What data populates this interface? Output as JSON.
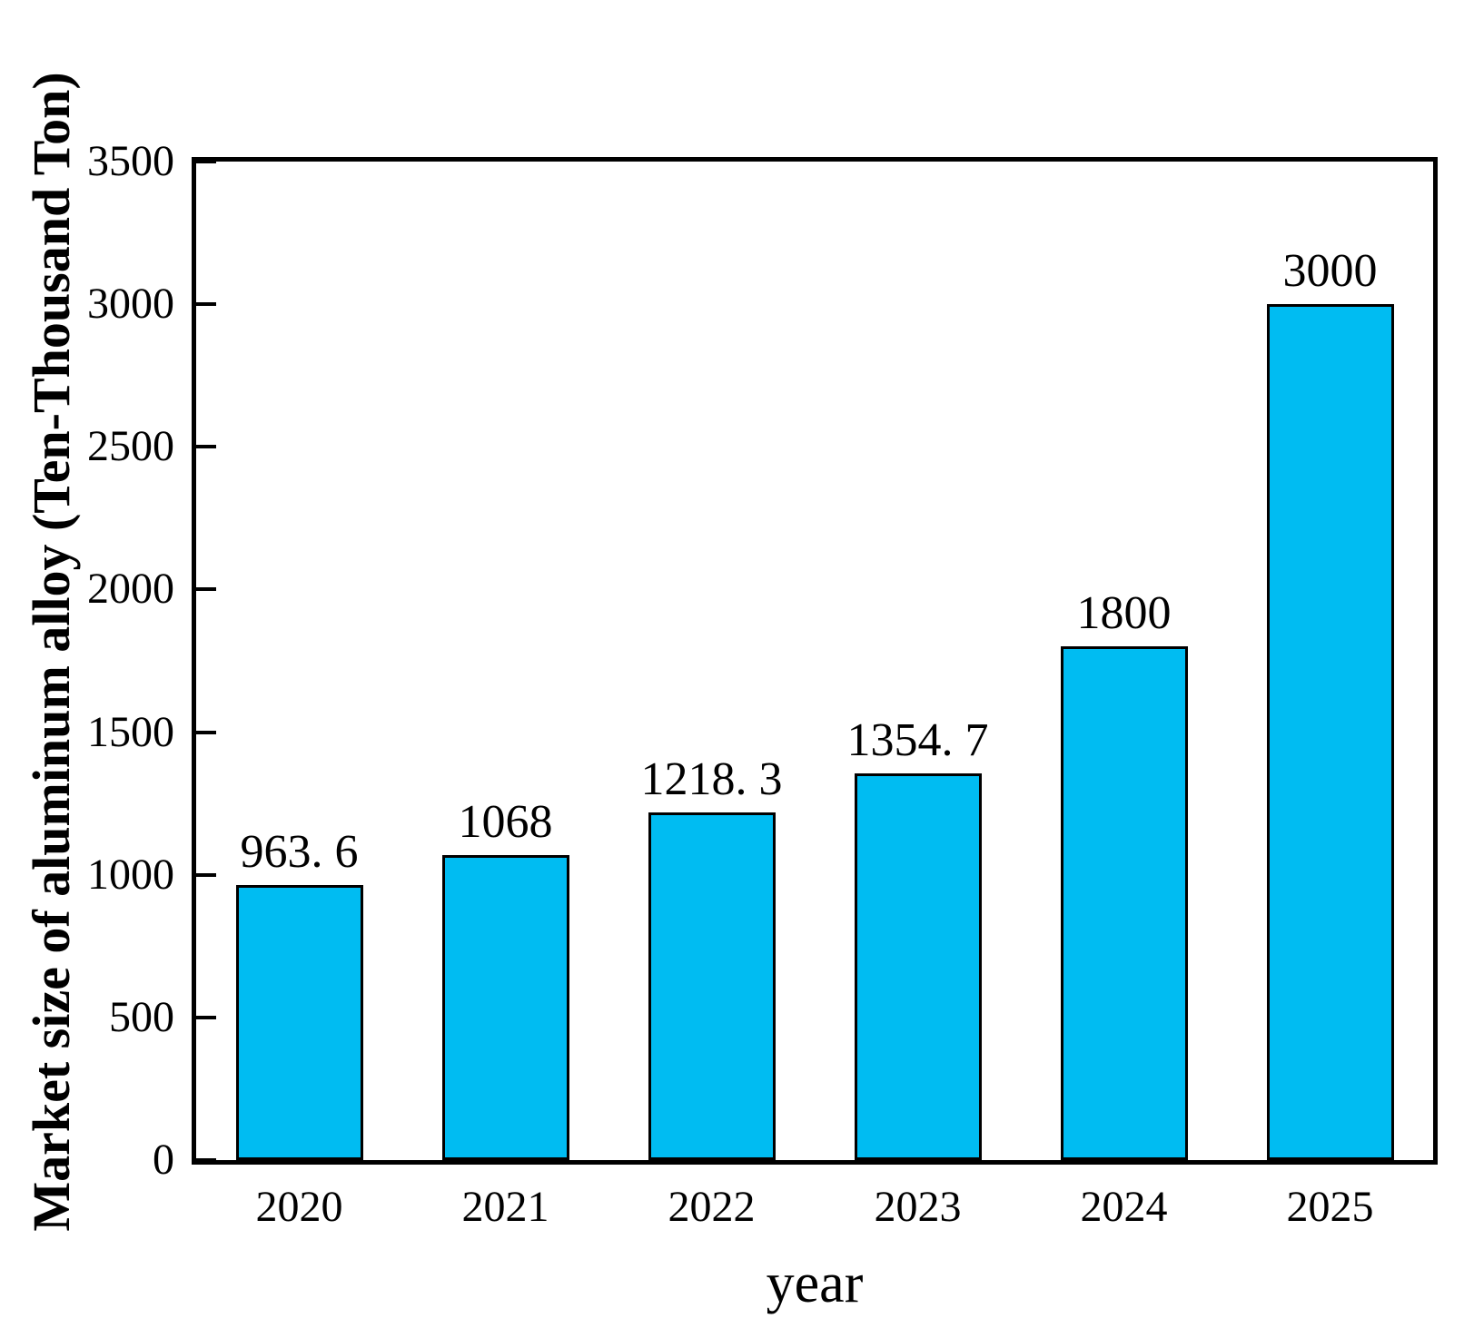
{
  "chart_data": {
    "type": "bar",
    "title": "",
    "xlabel": "year",
    "ylabel": "Market size of aluminum alloy  (Ten-Thousand Ton)",
    "categories": [
      "2020",
      "2021",
      "2022",
      "2023",
      "2024",
      "2025"
    ],
    "values": [
      963.6,
      1068,
      1218.3,
      1354.7,
      1800,
      3000
    ],
    "value_labels": [
      "963. 6",
      "1068",
      "1218. 3",
      "1354. 7",
      "1800",
      "3000"
    ],
    "ylim": [
      0,
      3500
    ],
    "yticks": [
      0,
      500,
      1000,
      1500,
      2000,
      2500,
      3000,
      3500
    ],
    "grid": false,
    "legend": "none",
    "bar_color": "#00BCF2",
    "bar_border_color": "#000000",
    "axis_color": "#000000"
  }
}
